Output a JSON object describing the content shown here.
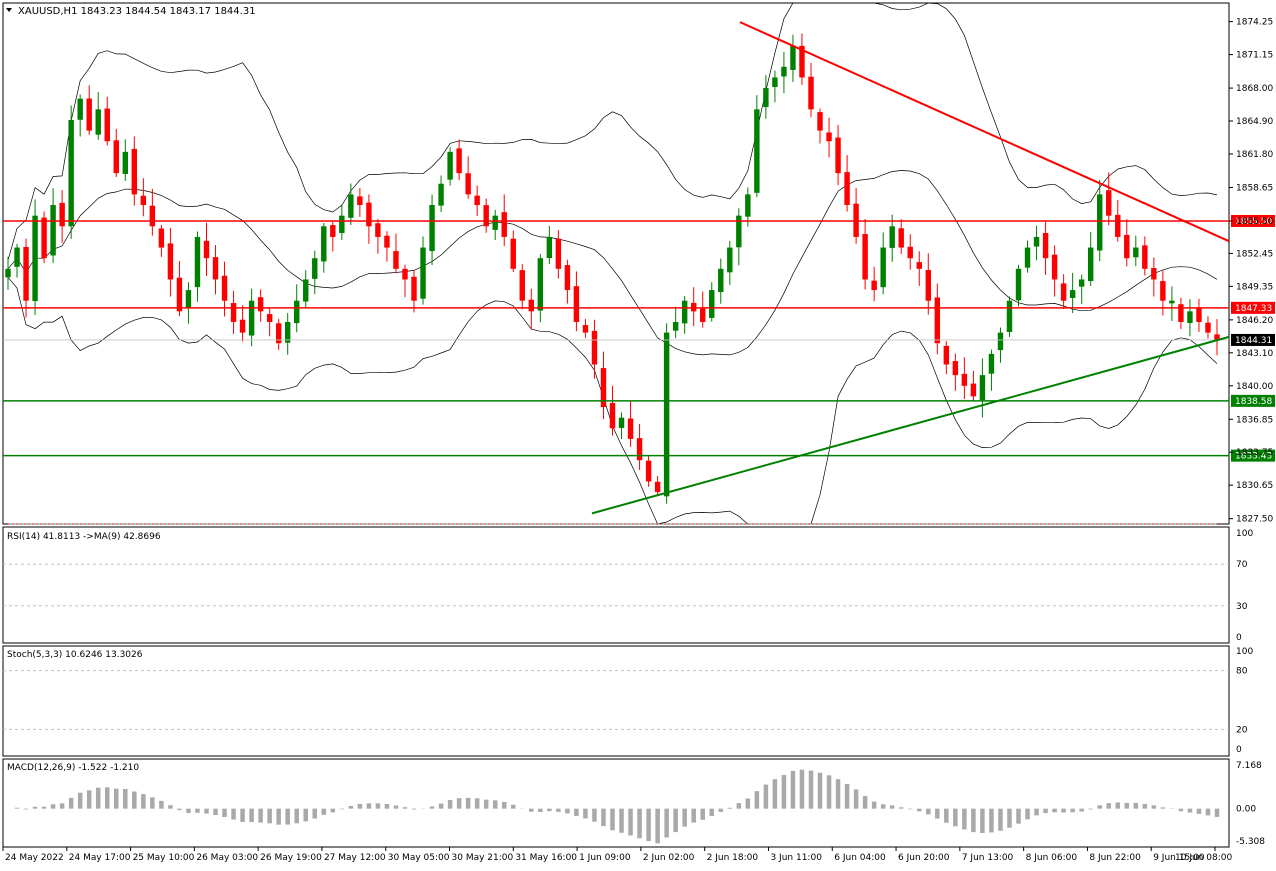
{
  "chart_data": {
    "type": "candlestick",
    "main_title": "XAUUSD,H1  1843.23 1844.54 1843.17 1844.31",
    "symbol": "XAUUSD",
    "timeframe": "H1",
    "ohlc_header": {
      "open": 1843.23,
      "high": 1844.54,
      "low": 1843.17,
      "close": 1844.31
    },
    "ylim": [
      1827.0,
      1876.0
    ],
    "price_ticks": [
      "1874.25",
      "1871.15",
      "1868.00",
      "1864.90",
      "1861.80",
      "1858.65",
      "1855.50",
      "1852.45",
      "1849.35",
      "1846.20",
      "1843.10",
      "1840.00",
      "1836.85",
      "1833.75",
      "1830.65",
      "1827.50"
    ],
    "price_tick_values": [
      1874.25,
      1871.15,
      1868.0,
      1864.9,
      1861.8,
      1858.65,
      1855.5,
      1852.45,
      1849.35,
      1846.2,
      1843.1,
      1840.0,
      1836.85,
      1833.75,
      1830.65,
      1827.5
    ],
    "x_labels": [
      "24 May 2022",
      "24 May 17:00",
      "25 May 10:00",
      "26 May 03:00",
      "26 May 19:00",
      "27 May 12:00",
      "30 May 05:00",
      "30 May 21:00",
      "31 May 16:00",
      "1 Jun 09:00",
      "2 Jun 02:00",
      "2 Jun 18:00",
      "3 Jun 11:00",
      "6 Jun 04:00",
      "6 Jun 20:00",
      "7 Jun 13:00",
      "8 Jun 06:00",
      "8 Jun 22:00",
      "9 Jun 15:00",
      "10 Jun 08:00"
    ],
    "horizontal_levels": [
      {
        "price": 1855.5,
        "label": "1855.50",
        "color": "#ff0000"
      },
      {
        "price": 1847.33,
        "label": "1847.33",
        "color": "#ff0000"
      },
      {
        "price": 1844.31,
        "label": "1844.31",
        "color": "#000000"
      },
      {
        "price": 1838.58,
        "label": "1838.58",
        "color": "#008000"
      },
      {
        "price": 1833.43,
        "label": "1833.43",
        "color": "#008000"
      }
    ],
    "trendlines": [
      {
        "name": "resistance",
        "color": "#ff0000",
        "from": {
          "time": "2 Jun 21:00",
          "price": 1874.2
        },
        "to": {
          "time": "10 Jun 09:00",
          "price": 1853.6
        }
      },
      {
        "name": "support",
        "color": "#008000",
        "from": {
          "time": "1 Jun 06:00",
          "price": 1828.0
        },
        "to": {
          "time": "10 Jun 09:00",
          "price": 1844.6
        }
      }
    ],
    "close_series_approx": [
      1851,
      1853,
      1848,
      1856,
      1852,
      1857,
      1855,
      1865,
      1867,
      1864,
      1866,
      1863,
      1860,
      1862,
      1858,
      1857,
      1855,
      1853,
      1850,
      1847,
      1849,
      1854,
      1852,
      1850,
      1848,
      1846,
      1845,
      1848,
      1847,
      1846,
      1844,
      1846,
      1848,
      1850,
      1852,
      1855,
      1854,
      1856,
      1858,
      1857,
      1855,
      1854,
      1853,
      1851,
      1850,
      1848,
      1853,
      1857,
      1859,
      1862,
      1860,
      1858,
      1857,
      1855,
      1856,
      1854,
      1851,
      1848,
      1847,
      1852,
      1854,
      1851,
      1849,
      1846,
      1845,
      1842,
      1838,
      1836,
      1837,
      1835,
      1833,
      1831,
      1830,
      1845,
      1846,
      1848,
      1847,
      1846,
      1849,
      1851,
      1853,
      1856,
      1858,
      1866,
      1868,
      1869,
      1870,
      1872,
      1869,
      1866,
      1864,
      1863,
      1860,
      1857,
      1854,
      1850,
      1849,
      1853,
      1855,
      1853,
      1852,
      1851,
      1848,
      1844,
      1842,
      1841,
      1840,
      1839,
      1841,
      1843,
      1845,
      1848,
      1851,
      1853,
      1854,
      1852,
      1850,
      1848,
      1849,
      1850,
      1853,
      1858,
      1856,
      1854,
      1852,
      1853,
      1851,
      1850,
      1848,
      1848,
      1846,
      1847,
      1846,
      1845,
      1844.31
    ],
    "indicators": {
      "bollinger": {
        "label": "Bollinger Bands",
        "color": "#000000"
      },
      "rsi": {
        "title": "RSI(14) 41.8113  ->MA(9) 42.8696",
        "rsi": 41.8113,
        "ma": 42.8696,
        "ticks": [
          "100",
          "70",
          "30",
          "0"
        ],
        "ylim": [
          0,
          100
        ],
        "levels": [
          70,
          30
        ],
        "line_colors": {
          "rsi": "#ff0000",
          "ma": "#0000ff"
        }
      },
      "stoch": {
        "title": "Stoch(5,3,3) 10.6246 13.3026",
        "k": 10.6246,
        "d": 13.3026,
        "ticks": [
          "100",
          "80",
          "20",
          "0"
        ],
        "ylim": [
          0,
          100
        ],
        "levels": [
          80,
          20
        ],
        "line_colors": {
          "k": "#20b2aa",
          "d": "#ff0000"
        }
      },
      "macd": {
        "title": "MACD(12,26,9) -1.522 -1.210",
        "macd": -1.522,
        "signal": -1.21,
        "ticks": [
          "7.168",
          "0.00",
          "-5.308"
        ],
        "ylim": [
          -5.308,
          7.168
        ],
        "line_colors": {
          "histogram": "#a9a9a9",
          "signal": "#ff0000"
        }
      }
    },
    "colors": {
      "bull": "#008000",
      "bear": "#ff0000",
      "grid": "#c0c0c0",
      "axis_text": "#000000"
    }
  }
}
